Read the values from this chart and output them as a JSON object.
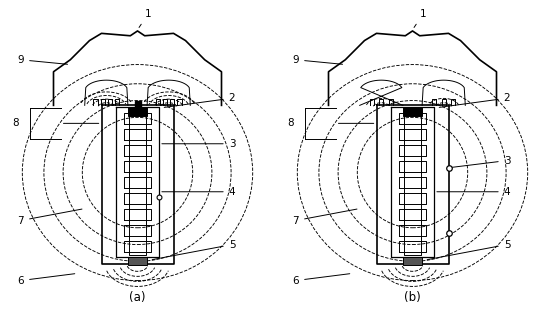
{
  "fig_width": 5.5,
  "fig_height": 3.22,
  "dpi": 100,
  "bg_color": "#ffffff",
  "line_color": "#000000",
  "label_a": "(a)",
  "label_b": "(b)"
}
